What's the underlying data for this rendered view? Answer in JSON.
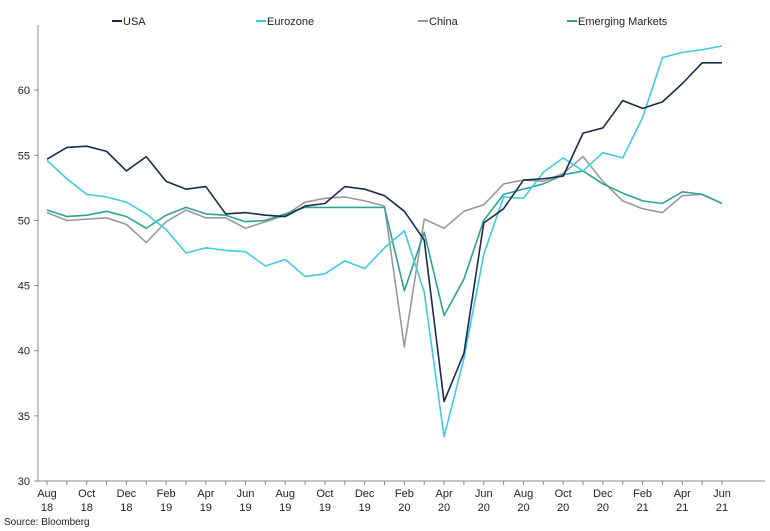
{
  "chart_data": {
    "type": "line",
    "title": "",
    "xlabel": "",
    "ylabel": "",
    "ylim": [
      30,
      65
    ],
    "yticks": [
      30,
      35,
      40,
      45,
      50,
      55,
      60
    ],
    "grid": false,
    "legend_position": "top",
    "x": [
      "Aug 18",
      "Sep 18",
      "Oct 18",
      "Nov 18",
      "Dec 18",
      "Jan 19",
      "Feb 19",
      "Mar 19",
      "Apr 19",
      "May 19",
      "Jun 19",
      "Jul 19",
      "Aug 19",
      "Sep 19",
      "Oct 19",
      "Nov 19",
      "Dec 19",
      "Jan 20",
      "Feb 20",
      "Mar 20",
      "Apr 20",
      "May 20",
      "Jun 20",
      "Jul 20",
      "Aug 20",
      "Sep 20",
      "Oct 20",
      "Nov 20",
      "Dec 20",
      "Jan 21",
      "Feb 21",
      "Mar 21",
      "Apr 21",
      "May 21",
      "Jun 21"
    ],
    "xtick_labels": [
      {
        "month": "Aug",
        "year": "18"
      },
      {
        "month": "Oct",
        "year": "18"
      },
      {
        "month": "Dec",
        "year": "18"
      },
      {
        "month": "Feb",
        "year": "19"
      },
      {
        "month": "Apr",
        "year": "19"
      },
      {
        "month": "Jun",
        "year": "19"
      },
      {
        "month": "Aug",
        "year": "19"
      },
      {
        "month": "Oct",
        "year": "19"
      },
      {
        "month": "Dec",
        "year": "19"
      },
      {
        "month": "Feb",
        "year": "20"
      },
      {
        "month": "Apr",
        "year": "20"
      },
      {
        "month": "Jun",
        "year": "20"
      },
      {
        "month": "Aug",
        "year": "20"
      },
      {
        "month": "Oct",
        "year": "20"
      },
      {
        "month": "Dec",
        "year": "20"
      },
      {
        "month": "Feb",
        "year": "21"
      },
      {
        "month": "Apr",
        "year": "21"
      },
      {
        "month": "Jun",
        "year": "21"
      }
    ],
    "series": [
      {
        "name": "USA",
        "color": "#1a2a4f",
        "values": [
          54.7,
          55.6,
          55.7,
          55.3,
          53.8,
          54.9,
          53.0,
          52.4,
          52.6,
          50.5,
          50.6,
          50.4,
          50.3,
          51.1,
          51.3,
          52.6,
          52.4,
          51.9,
          50.7,
          48.5,
          36.1,
          39.8,
          49.8,
          50.9,
          53.1,
          53.2,
          53.4,
          56.7,
          57.1,
          59.2,
          58.6,
          59.1,
          60.5,
          62.1,
          62.1
        ]
      },
      {
        "name": "Eurozone",
        "color": "#3fcbe3",
        "values": [
          54.6,
          53.2,
          52.0,
          51.8,
          51.4,
          50.5,
          49.3,
          47.5,
          47.9,
          47.7,
          47.6,
          46.5,
          47.0,
          45.7,
          45.9,
          46.9,
          46.3,
          47.9,
          49.2,
          44.5,
          33.4,
          39.4,
          47.4,
          51.8,
          51.7,
          53.7,
          54.8,
          53.8,
          55.2,
          54.8,
          57.9,
          62.5,
          62.9,
          63.1,
          63.4
        ]
      },
      {
        "name": "China",
        "color": "#999999",
        "values": [
          50.6,
          50.0,
          50.1,
          50.2,
          49.7,
          48.3,
          49.9,
          50.8,
          50.2,
          50.2,
          49.4,
          49.9,
          50.4,
          51.4,
          51.7,
          51.8,
          51.5,
          51.1,
          40.3,
          50.1,
          49.4,
          50.7,
          51.2,
          52.8,
          53.1,
          53.0,
          53.6,
          54.9,
          53.0,
          51.5,
          50.9,
          50.6,
          51.9,
          52.0,
          51.3
        ]
      },
      {
        "name": "Emerging Markets",
        "color": "#2da58e",
        "values": [
          50.8,
          50.3,
          50.4,
          50.7,
          50.3,
          49.4,
          50.4,
          51.0,
          50.5,
          50.4,
          49.9,
          50.0,
          50.5,
          51.0,
          51.0,
          51.0,
          51.0,
          51.0,
          44.6,
          49.1,
          42.7,
          45.5,
          50.0,
          52.0,
          52.4,
          52.8,
          53.5,
          53.8,
          52.8,
          52.1,
          51.5,
          51.3,
          52.2,
          52.0,
          51.3
        ]
      }
    ]
  },
  "source": "Source: Bloomberg"
}
